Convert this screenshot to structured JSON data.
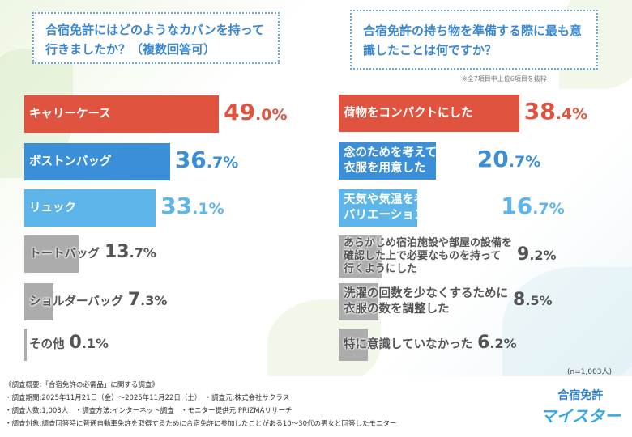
{
  "colors": {
    "red": "#e0533f",
    "blue": "#3a8fd8",
    "lightblue": "#5db5ea",
    "gray": "#acacac"
  },
  "chart_data": [
    {
      "type": "bar",
      "orientation": "horizontal",
      "title": "合宿免許にはどのようなカバンを持って行きましたか？（複数回答可）",
      "categories": [
        "キャリーケース",
        "ボストンバッグ",
        "リュック",
        "トートバッグ",
        "ショルダーバッグ",
        "その他"
      ],
      "values": [
        49.0,
        36.7,
        33.1,
        13.7,
        7.3,
        0.1
      ],
      "labels": [
        "49.0%",
        "36.7%",
        "33.1%",
        "13.7%",
        "7.3%",
        "0.1%"
      ],
      "bar_colors": [
        "red",
        "blue",
        "lightblue",
        "gray",
        "gray",
        "gray"
      ]
    },
    {
      "type": "bar",
      "orientation": "horizontal",
      "title": "合宿免許の持ち物を準備する際に最も意識したことは何ですか？",
      "note": "※全7項目中上位6項目を抜粋",
      "categories": [
        "荷物をコンパクトにした",
        "念のためを考えて多めに|衣服を用意した",
        "天気や気温を考えて服装の|バリエーションに気を配った",
        "あらかじめ宿泊施設や部屋の設備を|確認した上で必要なものを持って|行くようにした",
        "洗濯の回数を少なくするために|衣服の数を調整した",
        "特に意識していなかった"
      ],
      "values": [
        38.4,
        20.7,
        16.7,
        9.2,
        8.5,
        6.2
      ],
      "labels": [
        "38.4%",
        "20.7%",
        "16.7%",
        "9.2%",
        "8.5%",
        "6.2%"
      ],
      "bar_colors": [
        "red",
        "blue",
        "lightblue",
        "gray",
        "gray",
        "gray"
      ],
      "sample": "(n=1,003人)"
    }
  ],
  "footer": {
    "lines": [
      "《調査概要:「合宿免許の必需品」に関する調査》",
      "・調査期間:2025年11月21日（金）〜2025年11月22日（土）　・調査元:株式会社サクラス",
      "・調査人数:1,003人　・調査方法:インターネット調査　・モニター提供元:PRIZMAリサーチ",
      "・調査対象:調査回答時に普通自動車免許を取得するために合宿免許に参加したことがある10〜30代の男女と回答したモニター"
    ],
    "logo_top": "合宿免許",
    "logo_bottom": "マイスター"
  }
}
